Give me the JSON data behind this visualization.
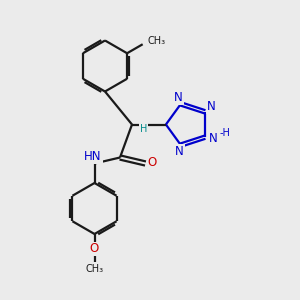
{
  "bg_color": "#ebebeb",
  "bond_color": "#1a1a1a",
  "nitrogen_color": "#0000cc",
  "oxygen_color": "#cc0000",
  "teal_color": "#008b8b",
  "font_size": 8.5,
  "line_width": 1.6,
  "figsize": [
    3.0,
    3.0
  ],
  "dpi": 100,
  "xlim": [
    0,
    10
  ],
  "ylim": [
    0,
    10
  ]
}
